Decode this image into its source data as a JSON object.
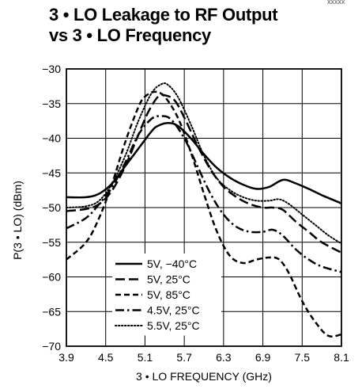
{
  "title_lines": [
    "3 • LO Leakage to RF Output",
    "vs 3 • LO Frequency"
  ],
  "corner_tag": "xxxxx",
  "chart_data": {
    "type": "line",
    "title": "3 • LO Leakage to RF Output vs 3 • LO Frequency",
    "xlabel": "3 • LO FREQUENCY (GHz)",
    "ylabel": "P(3 • LO) (dBm)",
    "xlim": [
      3.9,
      8.1
    ],
    "ylim": [
      -70,
      -30
    ],
    "x_ticks": [
      3.9,
      4.5,
      5.1,
      5.7,
      6.3,
      6.9,
      7.5,
      8.1
    ],
    "y_ticks": [
      -30,
      -35,
      -40,
      -45,
      -50,
      -55,
      -60,
      -65,
      -70
    ],
    "x_tick_labels": [
      "3.9",
      "4.5",
      "5.1",
      "5.7",
      "6.3",
      "6.9",
      "7.5",
      "8.1"
    ],
    "y_tick_labels": [
      "−30",
      "−35",
      "−40",
      "−45",
      "−50",
      "−55",
      "−60",
      "−65",
      "−70"
    ],
    "grid": true,
    "legend_position": "bottom-left",
    "series": [
      {
        "name": "5V, −40°C",
        "style": "solid",
        "width": 2.5,
        "x": [
          3.9,
          4.2,
          4.4,
          4.6,
          4.8,
          5.0,
          5.2,
          5.3,
          5.45,
          5.6,
          5.8,
          6.0,
          6.2,
          6.4,
          6.6,
          6.8,
          7.0,
          7.15,
          7.25,
          7.4,
          7.6,
          7.8,
          8.1
        ],
        "y": [
          -48.5,
          -48.5,
          -48.0,
          -46.5,
          -44.0,
          -41.5,
          -39.0,
          -38.2,
          -37.8,
          -38.2,
          -40.0,
          -42.3,
          -44.3,
          -45.7,
          -46.7,
          -47.3,
          -47.0,
          -46.2,
          -46.0,
          -46.5,
          -47.3,
          -48.2,
          -49.4
        ]
      },
      {
        "name": "5V, 25°C",
        "style": "longdash",
        "width": 2.5,
        "x": [
          3.9,
          4.2,
          4.4,
          4.6,
          4.8,
          5.0,
          5.15,
          5.3,
          5.4,
          5.55,
          5.7,
          5.9,
          6.1,
          6.3,
          6.5,
          6.7,
          6.9,
          7.05,
          7.2,
          7.4,
          7.6,
          7.8,
          8.1
        ],
        "y": [
          -50.5,
          -50.2,
          -49.5,
          -47.5,
          -44.0,
          -39.5,
          -36.2,
          -34.0,
          -33.8,
          -34.5,
          -37.0,
          -41.0,
          -44.5,
          -47.0,
          -48.5,
          -49.5,
          -50.0,
          -50.0,
          -50.3,
          -52.0,
          -53.5,
          -55.0,
          -56.5
        ]
      },
      {
        "name": "5V, 85°C",
        "style": "shortdash",
        "width": 2.5,
        "x": [
          3.9,
          4.2,
          4.4,
          4.6,
          4.8,
          5.0,
          5.1,
          5.25,
          5.4,
          5.6,
          5.8,
          6.0,
          6.2,
          6.4,
          6.6,
          6.8,
          7.0,
          7.15,
          7.3,
          7.5,
          7.7,
          7.9,
          8.1
        ],
        "y": [
          -57.5,
          -55.0,
          -51.5,
          -46.5,
          -40.5,
          -35.5,
          -34.0,
          -33.3,
          -34.0,
          -37.0,
          -42.0,
          -48.0,
          -53.5,
          -57.0,
          -58.0,
          -57.5,
          -57.2,
          -57.5,
          -59.5,
          -63.5,
          -66.5,
          -68.5,
          -68.3
        ]
      },
      {
        "name": "4.5V, 25°C",
        "style": "dashdot",
        "width": 2.5,
        "x": [
          3.9,
          4.2,
          4.4,
          4.6,
          4.8,
          5.0,
          5.2,
          5.35,
          5.5,
          5.7,
          5.9,
          6.1,
          6.3,
          6.5,
          6.7,
          6.9,
          7.05,
          7.2,
          7.4,
          7.6,
          7.8,
          8.1
        ],
        "y": [
          -53.0,
          -51.5,
          -49.5,
          -47.0,
          -43.5,
          -39.5,
          -37.2,
          -36.8,
          -37.3,
          -40.0,
          -44.0,
          -48.0,
          -51.0,
          -52.8,
          -53.5,
          -53.5,
          -53.2,
          -54.0,
          -56.0,
          -57.5,
          -58.5,
          -59.3
        ]
      },
      {
        "name": "5.5V, 25°C",
        "style": "dotted",
        "width": 2.0,
        "x": [
          3.9,
          4.2,
          4.4,
          4.6,
          4.8,
          5.0,
          5.2,
          5.35,
          5.45,
          5.6,
          5.8,
          6.0,
          6.2,
          6.4,
          6.6,
          6.8,
          7.0,
          7.15,
          7.3,
          7.5,
          7.7,
          7.9,
          8.1
        ],
        "y": [
          -50.0,
          -49.8,
          -49.0,
          -46.5,
          -42.5,
          -37.5,
          -33.5,
          -32.2,
          -32.3,
          -34.0,
          -38.0,
          -42.5,
          -45.8,
          -47.5,
          -48.5,
          -49.0,
          -49.0,
          -48.8,
          -49.5,
          -51.0,
          -52.5,
          -54.0,
          -55.2
        ]
      }
    ]
  }
}
